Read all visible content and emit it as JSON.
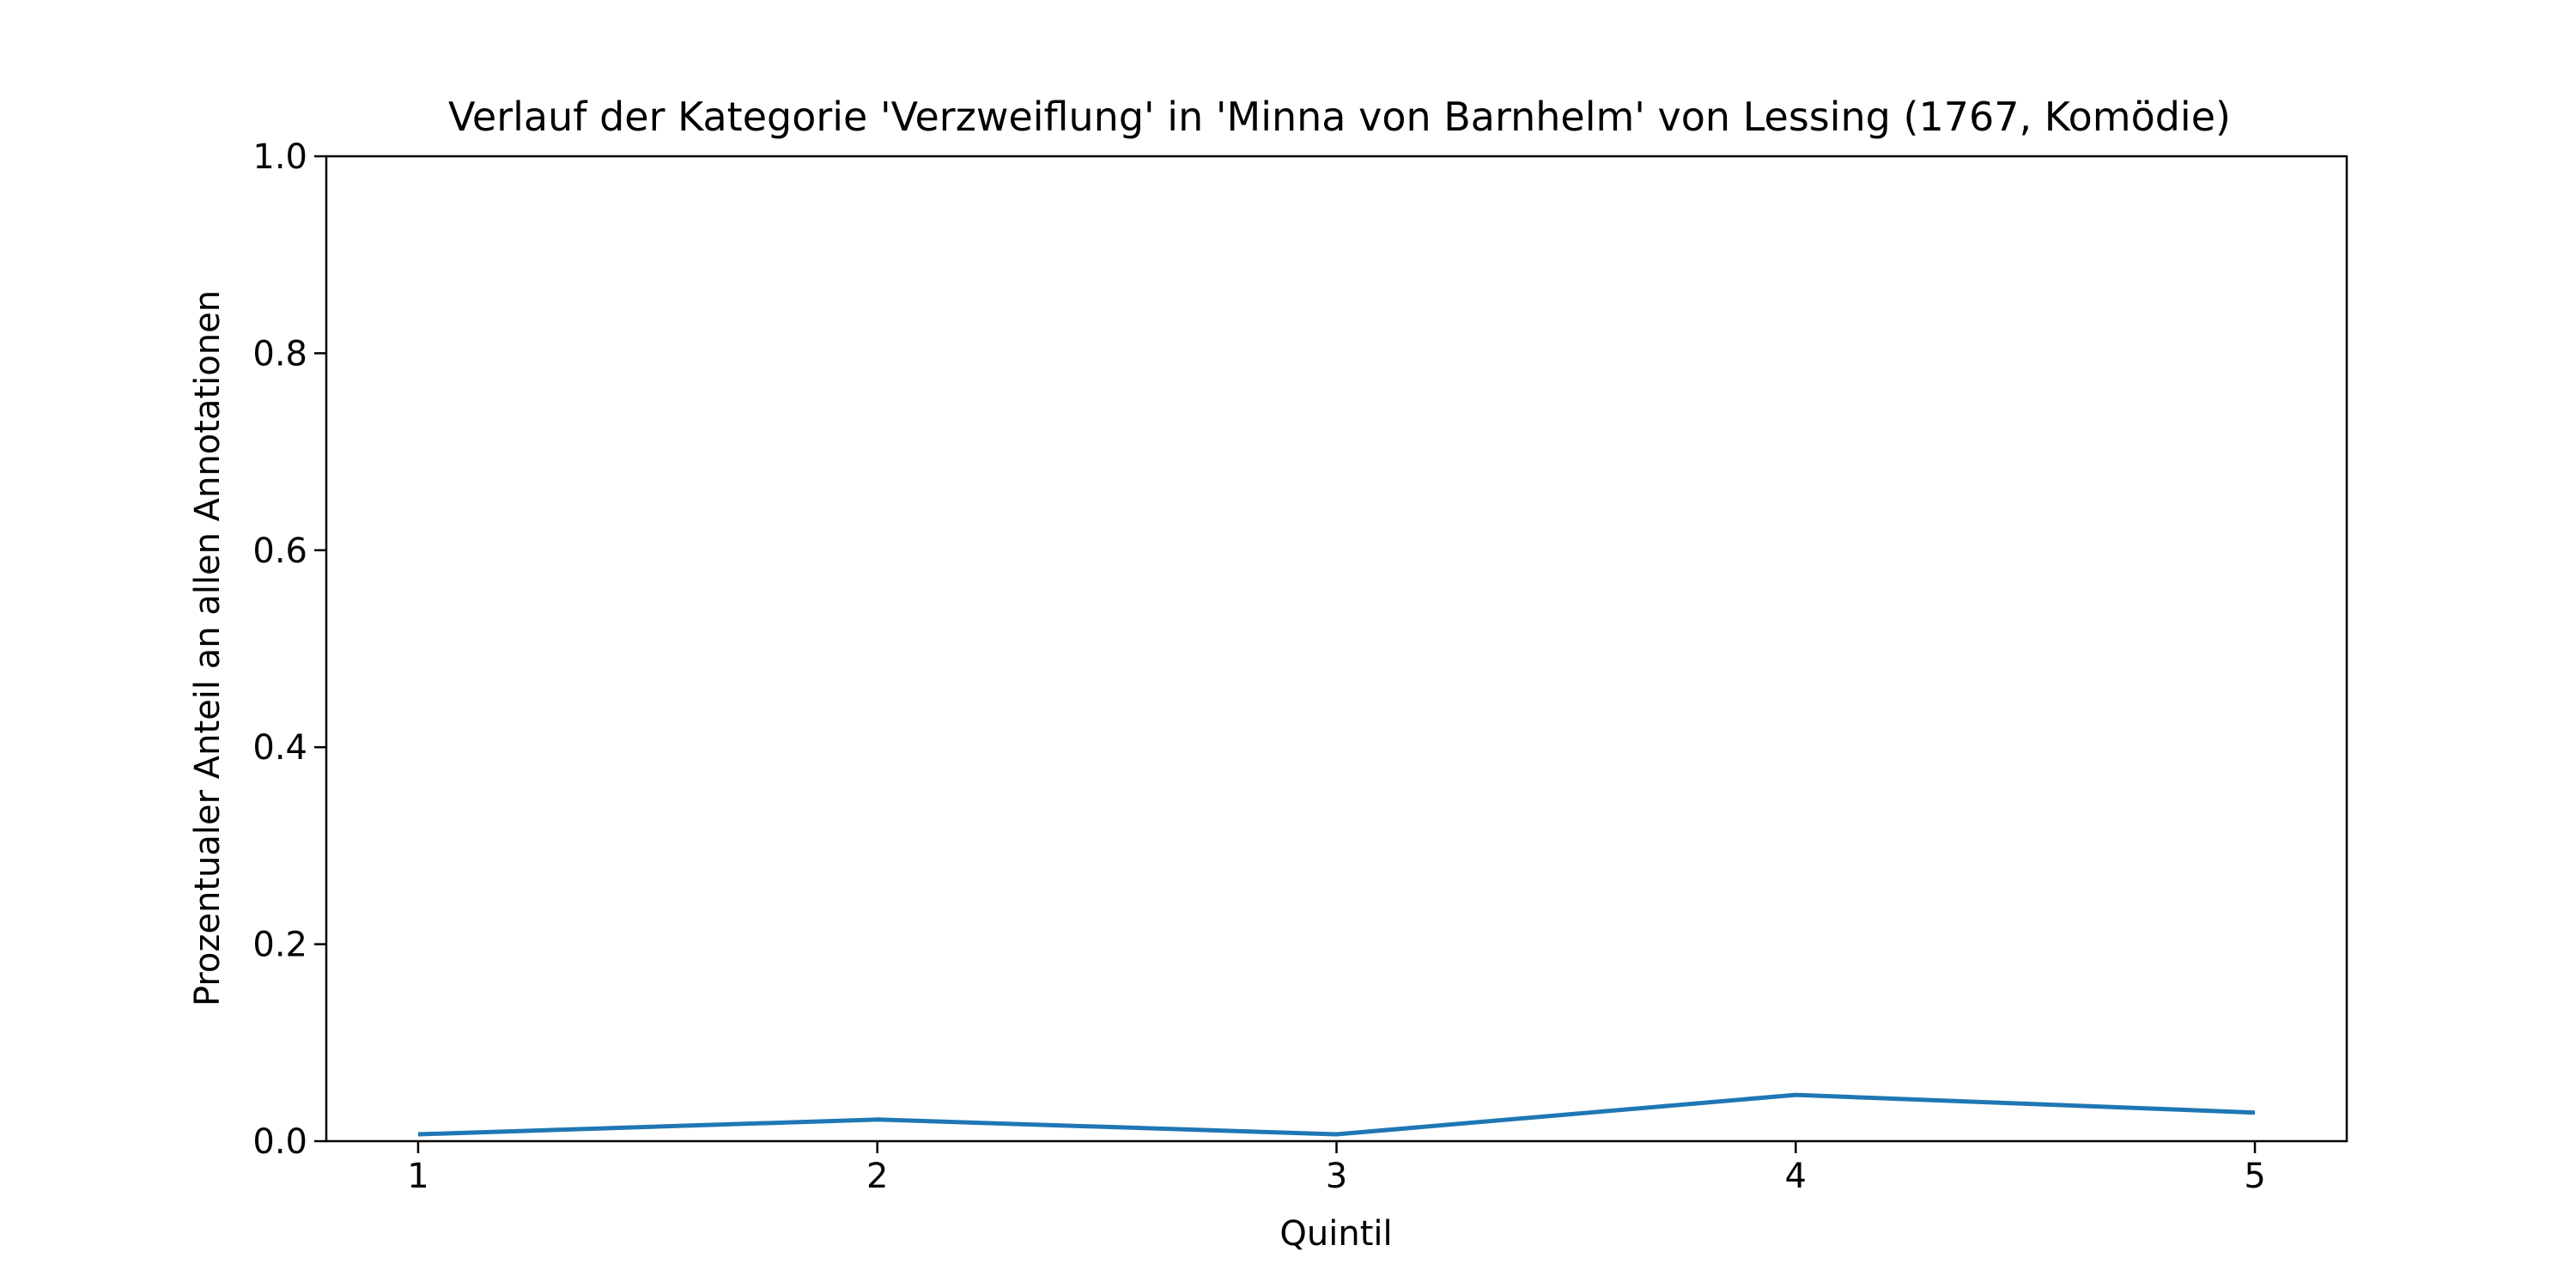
{
  "chart_data": {
    "type": "line",
    "title": "Verlauf der Kategorie 'Verzweiflung' in 'Minna von Barnhelm' von Lessing (1767, Komödie)",
    "xlabel": "Quintil",
    "ylabel": "Prozentualer Anteil an allen Annotationen",
    "x": [
      1,
      2,
      3,
      4,
      5
    ],
    "x_tick_labels": [
      "1",
      "2",
      "3",
      "4",
      "5"
    ],
    "xlim": [
      0.8,
      5.2
    ],
    "ylim": [
      0.0,
      1.0
    ],
    "y_ticks": [
      0.0,
      0.2,
      0.4,
      0.6,
      0.8,
      1.0
    ],
    "y_tick_labels": [
      "0.0",
      "0.2",
      "0.4",
      "0.6",
      "0.8",
      "1.0"
    ],
    "grid": false,
    "series": [
      {
        "values": [
          0.007,
          0.022,
          0.007,
          0.047,
          0.029
        ],
        "color": "#1f77b4"
      }
    ]
  }
}
